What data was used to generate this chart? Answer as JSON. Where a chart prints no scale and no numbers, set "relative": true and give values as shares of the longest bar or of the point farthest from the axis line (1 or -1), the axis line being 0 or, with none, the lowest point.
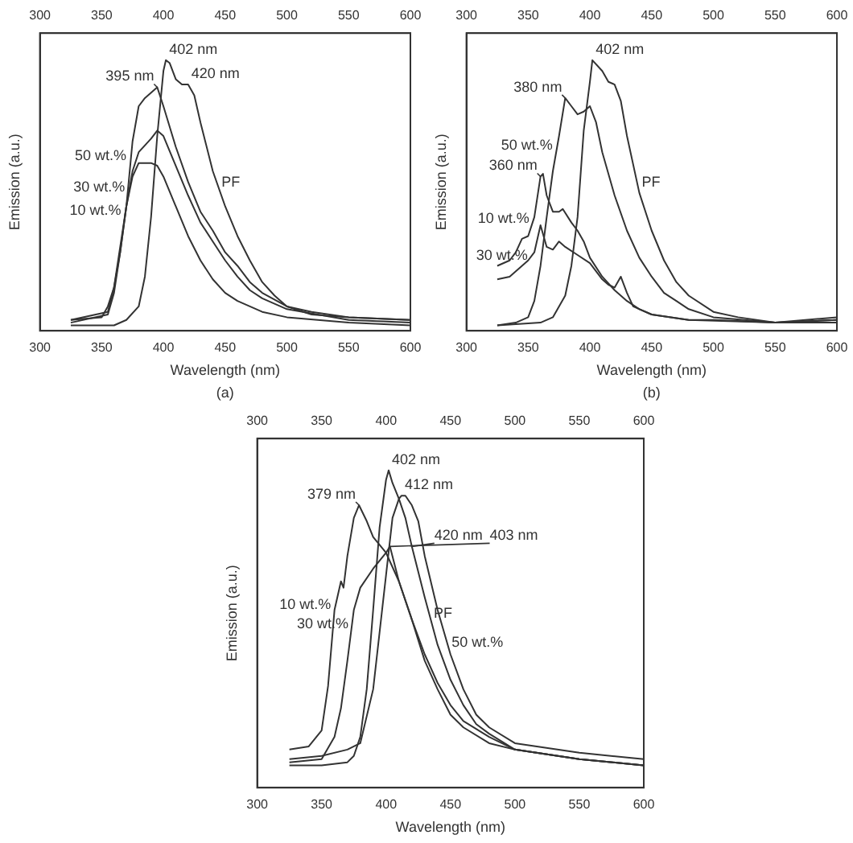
{
  "chart_data": [
    {
      "type": "line",
      "relative": true,
      "xlabel": "Wavelength (nm)",
      "ylabel": "Emission (a.u.)",
      "xlim": [
        300,
        600
      ],
      "xticks": [
        300,
        350,
        400,
        450,
        500,
        550,
        600
      ],
      "x2lim": [
        300,
        600
      ],
      "x2ticks": [
        300,
        350,
        400,
        450,
        500,
        550,
        600
      ],
      "tick_labels": "x",
      "annotations": [
        {
          "text": "402 nm",
          "x": 402,
          "y": 1.0
        },
        {
          "text": "395 nm",
          "x": 395,
          "y": 0.9
        },
        {
          "text": "420 nm",
          "x": 420,
          "y": 0.91
        },
        "(a)"
      ],
      "series": [
        {
          "name": "PF",
          "color": "#333333",
          "x": [
            325,
            360,
            370,
            380,
            385,
            390,
            395,
            400,
            402,
            405,
            410,
            415,
            420,
            425,
            430,
            440,
            450,
            460,
            470,
            480,
            490,
            500,
            520,
            550,
            600
          ],
          "values": [
            0.02,
            0.02,
            0.04,
            0.09,
            0.2,
            0.42,
            0.72,
            0.96,
            1.0,
            0.99,
            0.93,
            0.91,
            0.91,
            0.87,
            0.77,
            0.59,
            0.46,
            0.35,
            0.26,
            0.18,
            0.13,
            0.09,
            0.06,
            0.05,
            0.04
          ]
        },
        {
          "name": "50 wt.%",
          "color": "#333333",
          "x": [
            325,
            350,
            355,
            360,
            365,
            370,
            375,
            380,
            385,
            390,
            395,
            400,
            410,
            420,
            430,
            440,
            450,
            460,
            470,
            480,
            500,
            520,
            550,
            600
          ],
          "values": [
            0.04,
            0.05,
            0.09,
            0.16,
            0.29,
            0.46,
            0.7,
            0.83,
            0.86,
            0.88,
            0.9,
            0.83,
            0.68,
            0.55,
            0.44,
            0.37,
            0.29,
            0.24,
            0.18,
            0.14,
            0.09,
            0.07,
            0.05,
            0.04
          ]
        },
        {
          "name": "30 wt.%",
          "color": "#333333",
          "x": [
            325,
            355,
            360,
            365,
            370,
            375,
            380,
            390,
            395,
            400,
            410,
            420,
            430,
            440,
            450,
            460,
            470,
            480,
            500,
            550,
            600
          ],
          "values": [
            0.04,
            0.07,
            0.16,
            0.31,
            0.46,
            0.59,
            0.66,
            0.71,
            0.74,
            0.72,
            0.61,
            0.5,
            0.4,
            0.33,
            0.26,
            0.2,
            0.15,
            0.12,
            0.08,
            0.04,
            0.03
          ]
        },
        {
          "name": "10 wt.%",
          "color": "#333333",
          "x": [
            325,
            355,
            360,
            365,
            370,
            375,
            380,
            390,
            395,
            400,
            410,
            420,
            430,
            440,
            450,
            460,
            470,
            480,
            500,
            550,
            600
          ],
          "values": [
            0.03,
            0.06,
            0.14,
            0.29,
            0.46,
            0.57,
            0.62,
            0.62,
            0.61,
            0.57,
            0.46,
            0.35,
            0.26,
            0.19,
            0.14,
            0.11,
            0.09,
            0.07,
            0.05,
            0.03,
            0.02
          ]
        }
      ]
    },
    {
      "type": "line",
      "relative": true,
      "xlabel": "Wavelength (nm)",
      "ylabel": "Emission (a.u.)",
      "xlim": [
        300,
        600
      ],
      "xticks": [
        300,
        350,
        400,
        450,
        500,
        550,
        600
      ],
      "x2lim": [
        300,
        600
      ],
      "x2ticks": [
        300,
        350,
        400,
        450,
        500,
        550,
        600
      ],
      "tick_labels": "x",
      "annotations": [
        {
          "text": "402 nm",
          "x": 402,
          "y": 1.0
        },
        {
          "text": "380 nm",
          "x": 380,
          "y": 0.86
        },
        {
          "text": "360 nm",
          "x": 360,
          "y": 0.57
        },
        "(b)"
      ],
      "series": [
        {
          "name": "PF",
          "color": "#333333",
          "x": [
            325,
            360,
            370,
            380,
            385,
            390,
            395,
            400,
            402,
            410,
            415,
            420,
            425,
            430,
            440,
            450,
            460,
            470,
            480,
            500,
            520,
            550,
            600
          ],
          "values": [
            0.02,
            0.03,
            0.05,
            0.13,
            0.24,
            0.42,
            0.74,
            0.92,
            1.0,
            0.96,
            0.92,
            0.91,
            0.85,
            0.72,
            0.51,
            0.37,
            0.26,
            0.18,
            0.13,
            0.07,
            0.05,
            0.03,
            0.03
          ]
        },
        {
          "name": "50 wt.%",
          "color": "#333333",
          "x": [
            325,
            340,
            350,
            355,
            360,
            365,
            370,
            375,
            380,
            385,
            390,
            395,
            400,
            405,
            410,
            420,
            430,
            440,
            450,
            460,
            470,
            480,
            500,
            550,
            600
          ],
          "values": [
            0.02,
            0.03,
            0.05,
            0.11,
            0.24,
            0.42,
            0.59,
            0.72,
            0.86,
            0.83,
            0.8,
            0.81,
            0.83,
            0.77,
            0.66,
            0.5,
            0.37,
            0.27,
            0.2,
            0.14,
            0.11,
            0.08,
            0.05,
            0.03,
            0.04
          ]
        },
        {
          "name": "10 wt.%",
          "color": "#333333",
          "x": [
            325,
            335,
            340,
            345,
            350,
            355,
            360,
            362,
            365,
            370,
            375,
            378,
            385,
            390,
            395,
            400,
            410,
            420,
            430,
            440,
            450,
            480,
            500,
            550,
            600
          ],
          "values": [
            0.24,
            0.26,
            0.29,
            0.34,
            0.35,
            0.42,
            0.57,
            0.58,
            0.5,
            0.44,
            0.44,
            0.45,
            0.4,
            0.37,
            0.33,
            0.27,
            0.2,
            0.15,
            0.11,
            0.08,
            0.06,
            0.04,
            0.04,
            0.03,
            0.05
          ]
        },
        {
          "name": "30 wt.%",
          "color": "#333333",
          "x": [
            325,
            335,
            345,
            350,
            355,
            360,
            365,
            370,
            375,
            380,
            390,
            400,
            410,
            415,
            420,
            425,
            430,
            435,
            450,
            480,
            550,
            600
          ],
          "values": [
            0.19,
            0.2,
            0.24,
            0.26,
            0.29,
            0.39,
            0.31,
            0.3,
            0.33,
            0.31,
            0.28,
            0.25,
            0.19,
            0.17,
            0.16,
            0.2,
            0.14,
            0.09,
            0.06,
            0.04,
            0.03,
            0.04
          ]
        }
      ]
    },
    {
      "type": "line",
      "relative": true,
      "xlabel": "Wavelength (nm)",
      "ylabel": "Emission (a.u.)",
      "xlim": [
        300,
        600
      ],
      "xticks": [
        300,
        350,
        400,
        450,
        500,
        550,
        600
      ],
      "x2lim": [
        300,
        600
      ],
      "x2ticks": [
        300,
        350,
        400,
        450,
        500,
        550,
        600
      ],
      "tick_labels": "x",
      "annotations": [
        {
          "text": "402 nm",
          "x": 402,
          "y": 1.0
        },
        {
          "text": "412 nm",
          "x": 412,
          "y": 0.92
        },
        {
          "text": "379 nm",
          "x": 379,
          "y": 0.89
        },
        {
          "text": "420 nm",
          "x": 420,
          "y": 0.76
        },
        {
          "text": "403 nm",
          "x": 403,
          "y": 0.76
        }
      ],
      "series": [
        {
          "name": "PF",
          "color": "#333333",
          "x": [
            325,
            350,
            370,
            375,
            380,
            385,
            390,
            395,
            400,
            402,
            405,
            410,
            415,
            420,
            430,
            440,
            450,
            460,
            470,
            480,
            500,
            550,
            600
          ],
          "values": [
            0.07,
            0.07,
            0.08,
            0.1,
            0.16,
            0.31,
            0.56,
            0.82,
            0.97,
            1.0,
            0.96,
            0.91,
            0.85,
            0.76,
            0.6,
            0.45,
            0.34,
            0.26,
            0.2,
            0.17,
            0.12,
            0.09,
            0.07
          ]
        },
        {
          "name": "50 wt.%",
          "color": "#333333",
          "x": [
            325,
            350,
            370,
            380,
            390,
            400,
            405,
            410,
            412,
            415,
            420,
            425,
            430,
            440,
            450,
            460,
            470,
            480,
            500,
            550,
            600
          ],
          "values": [
            0.09,
            0.1,
            0.12,
            0.14,
            0.31,
            0.67,
            0.85,
            0.91,
            0.92,
            0.92,
            0.89,
            0.84,
            0.73,
            0.56,
            0.42,
            0.31,
            0.23,
            0.19,
            0.14,
            0.11,
            0.09
          ]
        },
        {
          "name": "10 wt.%",
          "color": "#333333",
          "x": [
            325,
            340,
            350,
            355,
            360,
            365,
            367,
            370,
            375,
            379,
            385,
            390,
            400,
            410,
            420,
            430,
            440,
            450,
            460,
            480,
            500,
            550,
            600
          ],
          "values": [
            0.12,
            0.13,
            0.18,
            0.32,
            0.56,
            0.65,
            0.63,
            0.73,
            0.85,
            0.89,
            0.84,
            0.79,
            0.74,
            0.65,
            0.53,
            0.4,
            0.31,
            0.23,
            0.19,
            0.14,
            0.12,
            0.09,
            0.07
          ]
        },
        {
          "name": "30 wt.%",
          "color": "#333333",
          "x": [
            325,
            350,
            360,
            365,
            370,
            375,
            380,
            390,
            400,
            403,
            410,
            420,
            430,
            440,
            450,
            460,
            480,
            500,
            550,
            600
          ],
          "values": [
            0.08,
            0.09,
            0.16,
            0.25,
            0.4,
            0.56,
            0.63,
            0.69,
            0.74,
            0.76,
            0.65,
            0.53,
            0.42,
            0.33,
            0.26,
            0.21,
            0.16,
            0.12,
            0.09,
            0.07
          ]
        }
      ]
    }
  ]
}
